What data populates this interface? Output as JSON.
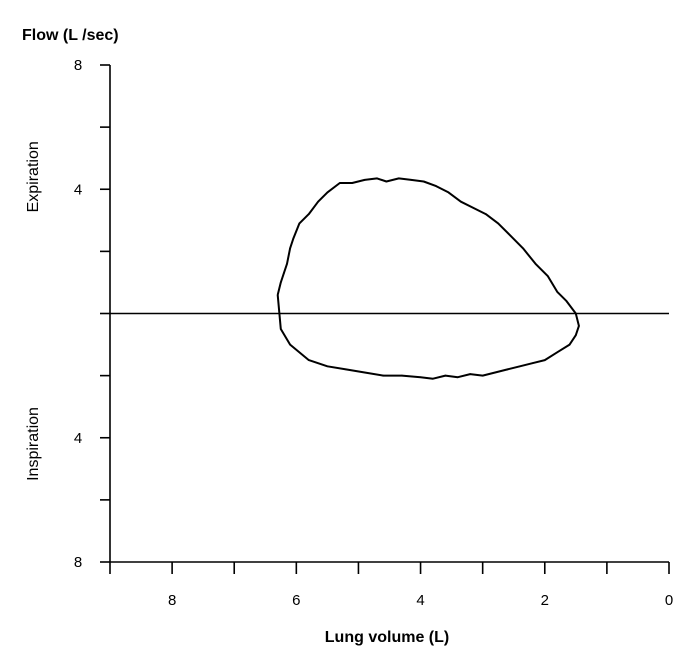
{
  "chart_data": {
    "type": "line",
    "title": "Flow (L /sec)",
    "xlabel": "Lung volume (L)",
    "x_reversed": true,
    "xlim": [
      9,
      0
    ],
    "ylim": [
      -8,
      8
    ],
    "x_ticks": [
      9,
      8,
      7,
      6,
      5,
      4,
      3,
      2,
      1,
      0
    ],
    "x_tick_labels": [
      {
        "value": 8,
        "label": "8"
      },
      {
        "value": 6,
        "label": "6"
      },
      {
        "value": 4,
        "label": "4"
      },
      {
        "value": 2,
        "label": "2"
      },
      {
        "value": 0,
        "label": "0"
      }
    ],
    "y_ticks": [
      8,
      6,
      4,
      2,
      0,
      -2,
      -4,
      -6,
      -8
    ],
    "y_tick_labels": [
      {
        "value": 8,
        "label": "8"
      },
      {
        "value": 4,
        "label": "4"
      },
      {
        "value": -4,
        "label": "4"
      },
      {
        "value": -8,
        "label": "8"
      }
    ],
    "region_labels": [
      {
        "text": "Expiration",
        "side": "positive-flow"
      },
      {
        "text": "Inspiration",
        "side": "negative-flow"
      }
    ],
    "zero_line": true,
    "grid": false,
    "legend": "none",
    "series": [
      {
        "x": [
          6.3,
          6.25,
          6.2,
          6.15,
          6.1,
          6.05,
          5.95,
          5.8,
          5.65,
          5.5,
          5.3,
          5.1,
          4.9,
          4.7,
          4.55,
          4.35,
          4.15,
          3.95,
          3.75,
          3.55,
          3.35,
          3.15,
          2.95,
          2.75,
          2.55,
          2.35,
          2.15,
          1.95,
          1.8,
          1.65,
          1.5,
          1.45,
          1.5,
          1.6,
          1.8,
          2.0,
          2.2,
          2.4,
          2.6,
          2.8,
          3.0,
          3.2,
          3.4,
          3.6,
          3.8,
          4.0,
          4.3,
          4.6,
          4.9,
          5.2,
          5.5,
          5.8,
          6.1,
          6.25,
          6.3
        ],
        "y": [
          0.6,
          1.0,
          1.3,
          1.6,
          2.1,
          2.4,
          2.9,
          3.2,
          3.6,
          3.9,
          4.2,
          4.2,
          4.3,
          4.35,
          4.25,
          4.35,
          4.3,
          4.25,
          4.1,
          3.9,
          3.6,
          3.4,
          3.2,
          2.9,
          2.5,
          2.1,
          1.6,
          1.2,
          0.7,
          0.4,
          0.0,
          -0.4,
          -0.7,
          -1.0,
          -1.25,
          -1.5,
          -1.6,
          -1.7,
          -1.8,
          -1.9,
          -2.0,
          -1.95,
          -2.05,
          -2.0,
          -2.1,
          -2.05,
          -2.0,
          -2.0,
          -1.9,
          -1.8,
          -1.7,
          -1.5,
          -1.0,
          -0.5,
          0.6
        ]
      }
    ]
  }
}
